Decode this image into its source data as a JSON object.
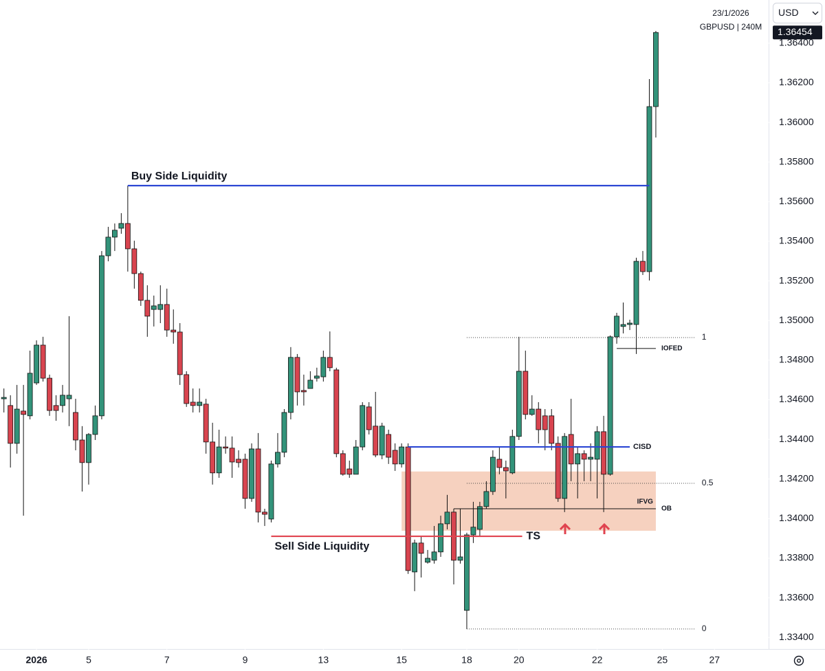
{
  "header": {
    "date": "23/1/2026",
    "symbol": "GBPUSD | 240M",
    "currency": "USD"
  },
  "chart_data": {
    "type": "candlestick",
    "open": [
      1.34605,
      1.34571,
      1.3438,
      1.34543,
      1.34519,
      1.34685,
      1.34876,
      1.34709,
      1.34571,
      1.34571,
      1.34605,
      1.34536,
      1.34397,
      1.34283,
      1.34425,
      1.34519,
      1.35327,
      1.35421,
      1.35466,
      1.3549,
      1.35362,
      1.35237,
      1.35102,
      1.35056,
      1.35056,
      1.35081,
      1.34952,
      1.34942,
      1.34727,
      1.34588,
      1.34571,
      1.34578,
      1.34387,
      1.34231,
      1.34362,
      1.34356,
      1.343,
      1.343,
      1.34102,
      1.34352,
      1.34033,
      1.33998,
      1.34276,
      1.34335,
      1.34536,
      1.34814,
      1.34647,
      1.34657,
      1.34709,
      1.34716,
      1.34814,
      1.34751,
      1.34328,
      1.34251,
      1.34224,
      1.34362,
      1.34564,
      1.34467,
      1.34321,
      1.34425,
      1.34345,
      1.34276,
      1.34362,
      1.33731,
      1.33877,
      1.3378,
      1.3379,
      1.33832,
      1.33974,
      1.34033,
      1.3379,
      1.33537,
      1.33918,
      1.33946,
      1.34061,
      1.34137,
      1.343,
      1.34258,
      1.34231,
      1.34415,
      1.34744,
      1.34526,
      1.34553,
      1.34519,
      1.34519,
      1.3438,
      1.34102,
      1.34425,
      1.34276,
      1.34328,
      1.343,
      1.343,
      1.34439,
      1.34224,
      1.34918,
      1.3497,
      1.3498,
      1.3498,
      1.35299,
      1.35247,
      1.3608
    ],
    "high": [
      1.34657,
      1.34623,
      1.34675,
      1.34675,
      1.34848,
      1.349,
      1.34918,
      1.34727,
      1.34623,
      1.34675,
      1.35022,
      1.34605,
      1.34467,
      1.34432,
      1.34571,
      1.35351,
      1.35473,
      1.3549,
      1.35542,
      1.35681,
      1.35403,
      1.35247,
      1.35178,
      1.35126,
      1.35178,
      1.35161,
      1.35056,
      1.34987,
      1.34744,
      1.34657,
      1.34657,
      1.34605,
      1.34484,
      1.34449,
      1.34415,
      1.34415,
      1.34345,
      1.34328,
      1.3438,
      1.34432,
      1.3405,
      1.34293,
      1.34432,
      1.34553,
      1.34866,
      1.34831,
      1.34727,
      1.34744,
      1.34762,
      1.34848,
      1.34945,
      1.34762,
      1.34345,
      1.34293,
      1.34397,
      1.34588,
      1.34588,
      1.3464,
      1.34484,
      1.34449,
      1.3438,
      1.3438,
      1.3438,
      1.33894,
      1.33911,
      1.33842,
      1.33963,
      1.34015,
      1.3412,
      1.3405,
      1.3405,
      1.33929,
      1.34085,
      1.34085,
      1.34189,
      1.34345,
      1.34362,
      1.34293,
      1.34449,
      1.34918,
      1.34848,
      1.34623,
      1.34588,
      1.34553,
      1.34553,
      1.34415,
      1.34432,
      1.34605,
      1.34362,
      1.34345,
      1.3438,
      1.34467,
      1.34519,
      1.34925,
      1.35039,
      1.35091,
      1.35004,
      1.35317,
      1.35351,
      1.36219,
      1.36462
    ],
    "low": [
      1.34536,
      1.34258,
      1.34328,
      1.34015,
      1.34501,
      1.34675,
      1.34692,
      1.34519,
      1.34494,
      1.34536,
      1.34467,
      1.34345,
      1.34137,
      1.34172,
      1.34397,
      1.34501,
      1.35299,
      1.35351,
      1.35438,
      1.35247,
      1.35161,
      1.35074,
      1.34918,
      1.3497,
      1.34987,
      1.34918,
      1.34883,
      1.34675,
      1.34564,
      1.34536,
      1.34536,
      1.34328,
      1.34172,
      1.34206,
      1.34328,
      1.34206,
      1.34258,
      1.3405,
      1.34085,
      1.33981,
      1.33963,
      1.33981,
      1.34258,
      1.3431,
      1.34501,
      1.34571,
      1.34571,
      1.34657,
      1.34692,
      1.34692,
      1.34744,
      1.3431,
      1.34217,
      1.34206,
      1.34224,
      1.34345,
      1.34425,
      1.3431,
      1.343,
      1.34276,
      1.34241,
      1.34258,
      1.33721,
      1.33634,
      1.33703,
      1.33773,
      1.33773,
      1.33807,
      1.33946,
      1.33668,
      1.33773,
      1.33443,
      1.33877,
      1.33911,
      1.3405,
      1.3412,
      1.34224,
      1.34102,
      1.34224,
      1.34397,
      1.34501,
      1.34519,
      1.3438,
      1.34345,
      1.34345,
      1.34085,
      1.34033,
      1.34189,
      1.34102,
      1.34189,
      1.34189,
      1.34102,
      1.34033,
      1.34217,
      1.34883,
      1.34935,
      1.34952,
      1.34831,
      1.3523,
      1.35202,
      1.35924
    ],
    "close": [
      1.34612,
      1.3438,
      1.34553,
      1.34526,
      1.34734,
      1.34876,
      1.34709,
      1.34546,
      1.34546,
      1.34623,
      1.34623,
      1.34397,
      1.34283,
      1.34425,
      1.34519,
      1.35327,
      1.35421,
      1.35456,
      1.3549,
      1.35362,
      1.35237,
      1.35102,
      1.35022,
      1.35074,
      1.35081,
      1.34952,
      1.34942,
      1.34727,
      1.34581,
      1.34571,
      1.34588,
      1.34387,
      1.34231,
      1.34362,
      1.34356,
      1.34286,
      1.34283,
      1.34102,
      1.34352,
      1.34033,
      1.34022,
      1.34276,
      1.34335,
      1.34536,
      1.34814,
      1.3464,
      1.3464,
      1.34699,
      1.3472,
      1.34814,
      1.34762,
      1.34328,
      1.34224,
      1.34224,
      1.34362,
      1.34571,
      1.34449,
      1.34321,
      1.34467,
      1.3431,
      1.34276,
      1.34362,
      1.33738,
      1.33877,
      1.33825,
      1.338,
      1.33832,
      1.33974,
      1.34033,
      1.3379,
      1.33807,
      1.33918,
      1.33957,
      1.34061,
      1.34137,
      1.3431,
      1.34258,
      1.34241,
      1.34415,
      1.34744,
      1.34526,
      1.34553,
      1.34449,
      1.34449,
      1.3438,
      1.34102,
      1.34415,
      1.34276,
      1.34328,
      1.343,
      1.3431,
      1.34439,
      1.34224,
      1.34918,
      1.35022,
      1.3498,
      1.34987,
      1.35299,
      1.35247,
      1.3608,
      1.36454
    ],
    "up_color": "#33937a",
    "down_color": "#d8444f",
    "last_price": 1.36454,
    "xlim": [
      -0.6,
      117.3
    ],
    "xticks": [
      {
        "value": 5,
        "label": "2026"
      },
      {
        "value": 13,
        "label": "5"
      },
      {
        "value": 25,
        "label": "7"
      },
      {
        "value": 37,
        "label": "9"
      },
      {
        "value": 49,
        "label": "13"
      },
      {
        "value": 61,
        "label": "15"
      },
      {
        "value": 71,
        "label": "18"
      },
      {
        "value": 79,
        "label": "20"
      },
      {
        "value": 91,
        "label": "22"
      },
      {
        "value": 101,
        "label": "25"
      },
      {
        "value": 109,
        "label": "27"
      }
    ],
    "ylim": [
      1.33342,
      1.36618
    ],
    "yticks": [
      {
        "value": 1.334,
        "label": "1.33400"
      },
      {
        "value": 1.336,
        "label": "1.33600"
      },
      {
        "value": 1.338,
        "label": "1.33800"
      },
      {
        "value": 1.34,
        "label": "1.34000"
      },
      {
        "value": 1.342,
        "label": "1.34200"
      },
      {
        "value": 1.344,
        "label": "1.34400"
      },
      {
        "value": 1.346,
        "label": "1.34600"
      },
      {
        "value": 1.348,
        "label": "1.34800"
      },
      {
        "value": 1.35,
        "label": "1.35000"
      },
      {
        "value": 1.352,
        "label": "1.35200"
      },
      {
        "value": 1.354,
        "label": "1.35400"
      },
      {
        "value": 1.356,
        "label": "1.35600"
      },
      {
        "value": 1.358,
        "label": "1.35800"
      },
      {
        "value": 1.36,
        "label": "1.36000"
      },
      {
        "value": 1.362,
        "label": "1.36200"
      },
      {
        "value": 1.364,
        "label": "1.36400"
      }
    ],
    "zone": {
      "text": "IFVG",
      "top": 1.34238,
      "bottom": 1.33939,
      "x": [
        61,
        100
      ],
      "color": "#f4c9b4"
    },
    "fib": {
      "high": 1.34914,
      "low": 1.33443,
      "x": [
        71,
        106.1
      ],
      "levels": [
        1,
        0.5,
        0
      ]
    },
    "levels": [
      {
        "text": "Buy Side Liquidity",
        "price": 1.35681,
        "x": [
          19,
          99
        ],
        "color": "#2b46d4",
        "label": "above-start"
      },
      {
        "text": "Sell Side Liquidity",
        "end_text": "TS",
        "price": 1.33911,
        "x": [
          41,
          79.5
        ],
        "color": "#e0434f",
        "label": "below-start"
      },
      {
        "text": "CISD",
        "price": 1.34362,
        "x": [
          62,
          96
        ],
        "color": "#2b46d4",
        "label": "end"
      },
      {
        "text": "OB",
        "price": 1.3405,
        "x": [
          69,
          100
        ],
        "color": "#111111",
        "label": "end"
      },
      {
        "text": "IOFED",
        "price": 1.34859,
        "x": [
          94,
          100
        ],
        "color": "#111111",
        "label": "end"
      }
    ]
  }
}
